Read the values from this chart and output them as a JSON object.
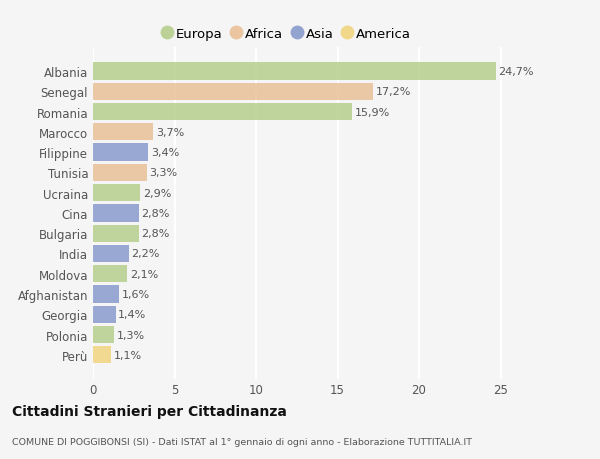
{
  "categories": [
    "Albania",
    "Senegal",
    "Romania",
    "Marocco",
    "Filippine",
    "Tunisia",
    "Ucraina",
    "Cina",
    "Bulgaria",
    "India",
    "Moldova",
    "Afghanistan",
    "Georgia",
    "Polonia",
    "Perù"
  ],
  "values": [
    24.7,
    17.2,
    15.9,
    3.7,
    3.4,
    3.3,
    2.9,
    2.8,
    2.8,
    2.2,
    2.1,
    1.6,
    1.4,
    1.3,
    1.1
  ],
  "labels": [
    "24,7%",
    "17,2%",
    "15,9%",
    "3,7%",
    "3,4%",
    "3,3%",
    "2,9%",
    "2,8%",
    "2,8%",
    "2,2%",
    "2,1%",
    "1,6%",
    "1,4%",
    "1,3%",
    "1,1%"
  ],
  "continents": [
    "Europa",
    "Africa",
    "Europa",
    "Africa",
    "Asia",
    "Africa",
    "Europa",
    "Asia",
    "Europa",
    "Asia",
    "Europa",
    "Asia",
    "Asia",
    "Europa",
    "America"
  ],
  "continent_colors": {
    "Europa": "#adc97e",
    "Africa": "#e8b98a",
    "Asia": "#7b8fc7",
    "America": "#f0d070"
  },
  "legend_order": [
    "Europa",
    "Africa",
    "Asia",
    "America"
  ],
  "xlim": [
    0,
    26.5
  ],
  "xticks": [
    0,
    5,
    10,
    15,
    20,
    25
  ],
  "title": "Cittadini Stranieri per Cittadinanza",
  "subtitle": "COMUNE DI POGGIBONSI (SI) - Dati ISTAT al 1° gennaio di ogni anno - Elaborazione TUTTITALIA.IT",
  "bg_color": "#f5f5f5",
  "grid_color": "#ffffff",
  "label_fontsize": 8,
  "tick_fontsize": 8.5
}
